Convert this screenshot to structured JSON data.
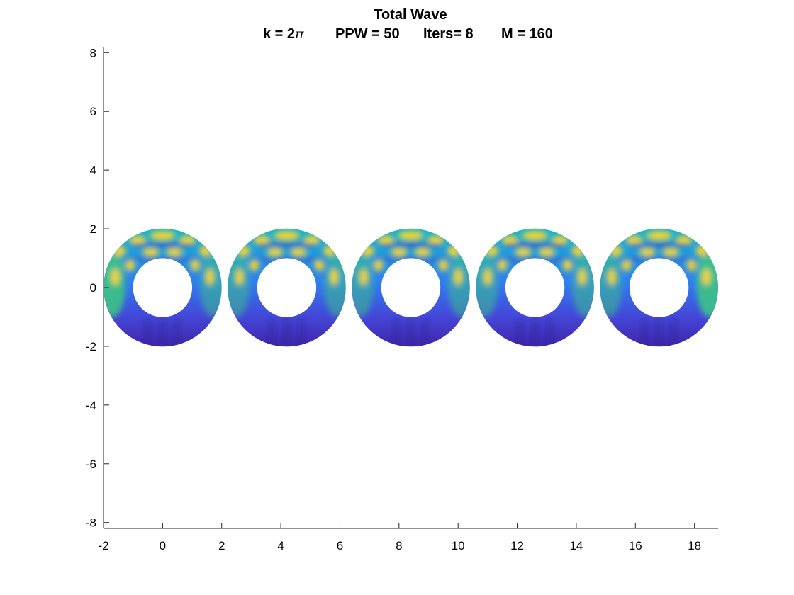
{
  "chart_data": {
    "type": "heatmap",
    "title": "Total Wave",
    "subtitle": {
      "k_label": "k = 2",
      "k_symbol": "π",
      "ppw": "PPW = 50",
      "iters": "Iters= 8",
      "m": "M = 160"
    },
    "xlabel": "",
    "ylabel": "",
    "xlim": [
      -2,
      18.8
    ],
    "ylim": [
      -8.2,
      8.2
    ],
    "xticks": [
      -2,
      0,
      2,
      4,
      6,
      8,
      10,
      12,
      14,
      16,
      18
    ],
    "xtick_labels": [
      "-2",
      "0",
      "2",
      "4",
      "6",
      "8",
      "10",
      "12",
      "14",
      "16",
      "18"
    ],
    "yticks": [
      -8,
      -6,
      -4,
      -2,
      0,
      2,
      4,
      6,
      8
    ],
    "ytick_labels": [
      "-8",
      "-6",
      "-4",
      "-2",
      "0",
      "2",
      "4",
      "6",
      "8"
    ],
    "grid": false,
    "colormap": "parula",
    "colors": {
      "low": "#3e26a8",
      "mid_low": "#2f7ff0",
      "mid": "#14b4d0",
      "mid_high": "#3cbf8a",
      "high": "#f9d72a"
    },
    "scatterers": [
      {
        "center": [
          0,
          0
        ],
        "inner_radius": 1,
        "outer_radius": 2
      },
      {
        "center": [
          4.2,
          0
        ],
        "inner_radius": 1,
        "outer_radius": 2
      },
      {
        "center": [
          8.4,
          0
        ],
        "inner_radius": 1,
        "outer_radius": 2
      },
      {
        "center": [
          12.6,
          0
        ],
        "inner_radius": 1,
        "outer_radius": 2
      },
      {
        "center": [
          16.8,
          0
        ],
        "inner_radius": 1,
        "outer_radius": 2
      }
    ]
  }
}
